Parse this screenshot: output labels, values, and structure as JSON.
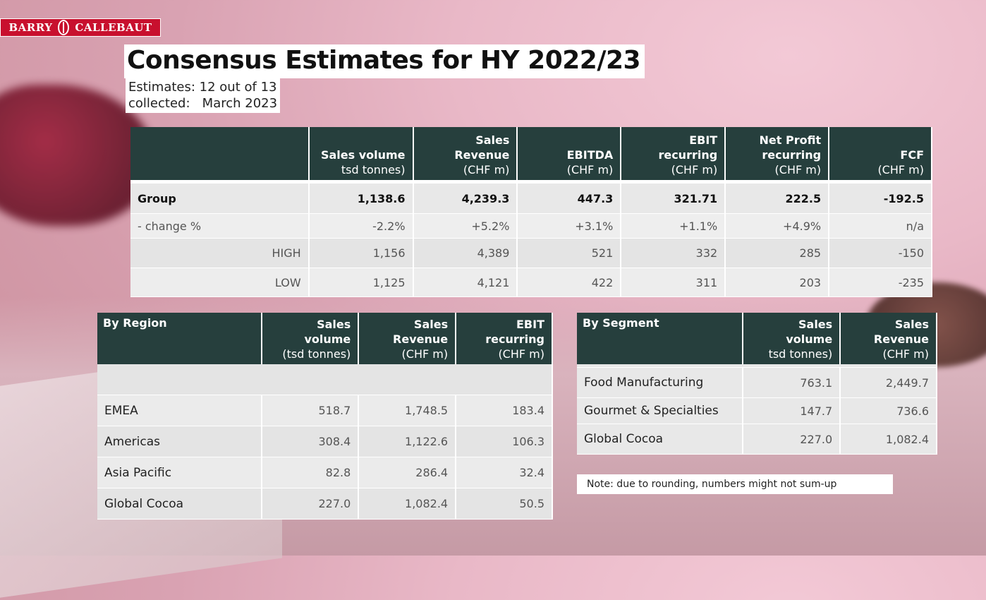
{
  "brand": {
    "left": "BARRY",
    "right": "CALLEBAUT",
    "color": "#c8102e"
  },
  "title": "Consensus Estimates for HY 2022/23",
  "meta": {
    "estimates": "Estimates: 12 out of 13",
    "collected": "collected:   March 2023"
  },
  "colors": {
    "header": "#263f3d"
  },
  "main_table": {
    "headers": [
      {
        "bold": "",
        "sub": ""
      },
      {
        "bold": "Sales volume",
        "sub": "tsd tonnes)"
      },
      {
        "bold": "Sales Revenue",
        "sub": "(CHF m)"
      },
      {
        "bold": "EBITDA",
        "sub": "(CHF m)"
      },
      {
        "bold": "EBIT recurring",
        "sub": "(CHF m)"
      },
      {
        "bold": "Net Profit recurring",
        "sub": "(CHF m)"
      },
      {
        "bold": "FCF",
        "sub": "(CHF m)"
      }
    ],
    "rows": [
      {
        "label": "Group",
        "values": [
          "1,138.6",
          "4,239.3",
          "447.3",
          "321.71",
          "222.5",
          "-192.5"
        ]
      },
      {
        "label": "- change %",
        "values": [
          "-2.2%",
          "+5.2%",
          "+3.1%",
          "+1.1%",
          "+4.9%",
          "n/a"
        ]
      },
      {
        "label": "HIGH",
        "values": [
          "1,156",
          "4,389",
          "521",
          "332",
          "285",
          "-150"
        ]
      },
      {
        "label": "LOW",
        "values": [
          "1,125",
          "4,121",
          "422",
          "311",
          "203",
          "-235"
        ]
      }
    ]
  },
  "region_table": {
    "headers": [
      {
        "bold": "By Region",
        "sub": ""
      },
      {
        "bold": "Sales volume",
        "sub": "(tsd tonnes)"
      },
      {
        "bold": "Sales Revenue",
        "sub": "(CHF m)"
      },
      {
        "bold": "EBIT recurring",
        "sub": "(CHF m)"
      }
    ],
    "rows": [
      {
        "label": "EMEA",
        "values": [
          "518.7",
          "1,748.5",
          "183.4"
        ]
      },
      {
        "label": "Americas",
        "values": [
          "308.4",
          "1,122.6",
          "106.3"
        ]
      },
      {
        "label": "Asia Pacific",
        "values": [
          "82.8",
          "286.4",
          "32.4"
        ]
      },
      {
        "label": "Global Cocoa",
        "values": [
          "227.0",
          "1,082.4",
          "50.5"
        ]
      }
    ]
  },
  "segment_table": {
    "headers": [
      {
        "bold": "By Segment",
        "sub": ""
      },
      {
        "bold": "Sales volume",
        "sub": "tsd tonnes)"
      },
      {
        "bold": "Sales Revenue",
        "sub": "(CHF m)"
      }
    ],
    "rows": [
      {
        "label": "Food Manufacturing",
        "values": [
          "763.1",
          "2,449.7"
        ]
      },
      {
        "label": "Gourmet & Specialties",
        "values": [
          "147.7",
          "736.6"
        ]
      },
      {
        "label": "Global Cocoa",
        "values": [
          "227.0",
          "1,082.4"
        ]
      }
    ]
  },
  "note": "Note: due to rounding, numbers might not sum-up"
}
